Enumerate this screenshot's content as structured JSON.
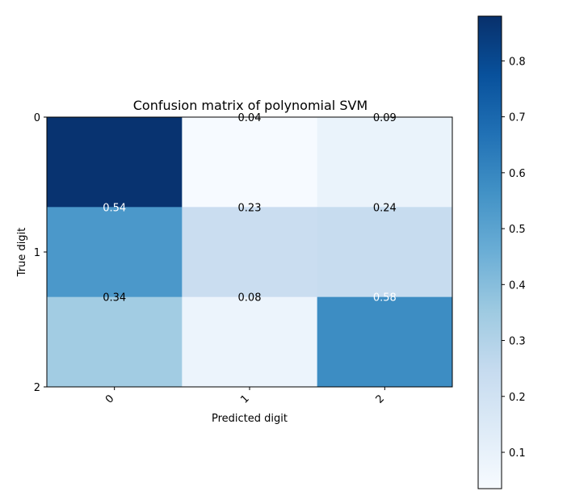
{
  "chart_data": {
    "type": "heatmap",
    "title": "Confusion matrix of polynomial SVM",
    "xlabel": "Predicted digit",
    "ylabel": "True digit",
    "x_categories": [
      "0",
      "1",
      "2"
    ],
    "y_categories": [
      "0",
      "1",
      "2"
    ],
    "values": [
      [
        0.87,
        0.04,
        0.09
      ],
      [
        0.54,
        0.23,
        0.24
      ],
      [
        0.34,
        0.08,
        0.58
      ]
    ],
    "cell_labels": [
      [
        "",
        "0.04",
        "0.09"
      ],
      [
        "0.54",
        "0.23",
        "0.24"
      ],
      [
        "0.34",
        "0.08",
        "0.58"
      ]
    ],
    "colormap": "Blues",
    "colorbar": {
      "min": 0.035,
      "max": 0.88,
      "ticks": [
        "0.1",
        "0.2",
        "0.3",
        "0.4",
        "0.5",
        "0.6",
        "0.7",
        "0.8"
      ]
    },
    "grid": false
  }
}
